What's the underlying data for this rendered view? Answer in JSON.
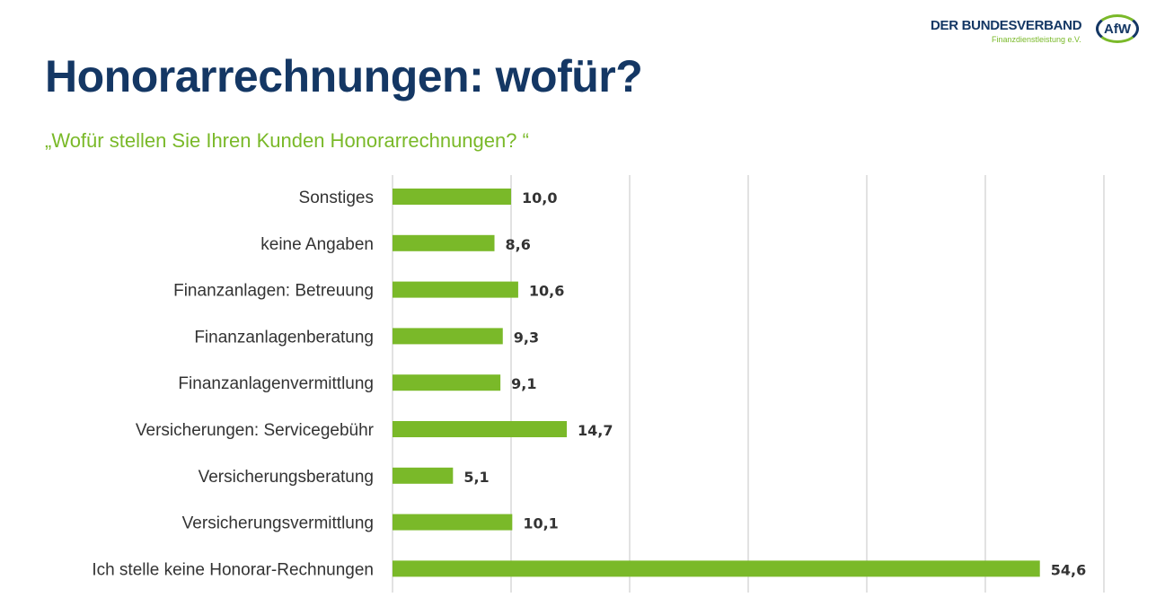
{
  "title": "Honorarrechnungen: wofür?",
  "subtitle": "„Wofür stellen Sie Ihren Kunden Honorarrechnungen? “",
  "logo": {
    "line1": "DER BUNDESVERBAND",
    "line2": "Finanzdienstleistung e.V.",
    "badge": "AfW"
  },
  "chart_data": {
    "type": "bar",
    "orientation": "horizontal",
    "categories": [
      "Sonstiges",
      "keine Angaben",
      "Finanzanlagen: Betreuung",
      "Finanzanlagenberatung",
      "Finanzanlagenvermittlung",
      "Versicherungen: Servicegebühr",
      "Versicherungsberatung",
      "Versicherungsvermittlung",
      "Ich stelle keine Honorar-Rechnungen"
    ],
    "values": [
      10.0,
      8.6,
      10.6,
      9.3,
      9.1,
      14.7,
      5.1,
      10.1,
      54.6
    ],
    "labels": [
      "10,0",
      "8,6",
      "10,6",
      "9,3",
      "9,1",
      "14,7",
      "5,1",
      "10,1",
      "54,6"
    ],
    "xlim": [
      0,
      60
    ],
    "grid": true,
    "bar_color": "#7ab929",
    "grid_color": "#d9d9d9"
  }
}
